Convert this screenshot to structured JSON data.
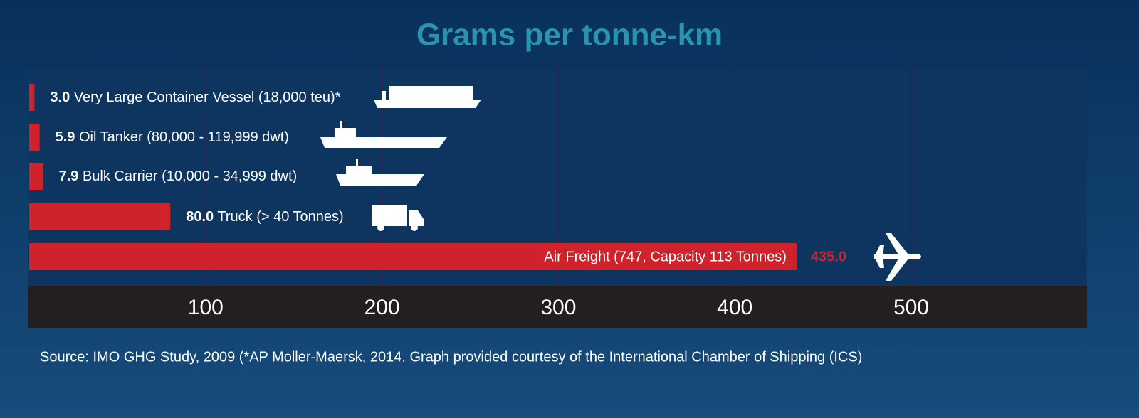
{
  "chart_data": {
    "type": "bar",
    "orientation": "horizontal",
    "title": "Grams per tonne-km",
    "categories": [
      "Very Large Container Vessel (18,000 teu)*",
      "Oil Tanker (80,000 - 119,999 dwt)",
      "Bulk Carrier (10,000 - 34,999 dwt)",
      "Truck (> 40 Tonnes)",
      "Air Freight (747, Capacity 113 Tonnes)"
    ],
    "values": [
      3.0,
      5.9,
      7.9,
      80.0,
      435.0
    ],
    "value_labels": [
      "3.0",
      "5.9",
      "7.9",
      "80.0",
      "435.0"
    ],
    "color": "#d0222b",
    "xlim": [
      0,
      600
    ],
    "xticks": [
      100,
      200,
      300,
      400,
      500
    ],
    "grid": true,
    "source": "Source: IMO GHG Study, 2009 (*AP Moller-Maersk, 2014. Graph provided courtesy of the International Chamber of Shipping (ICS)"
  }
}
